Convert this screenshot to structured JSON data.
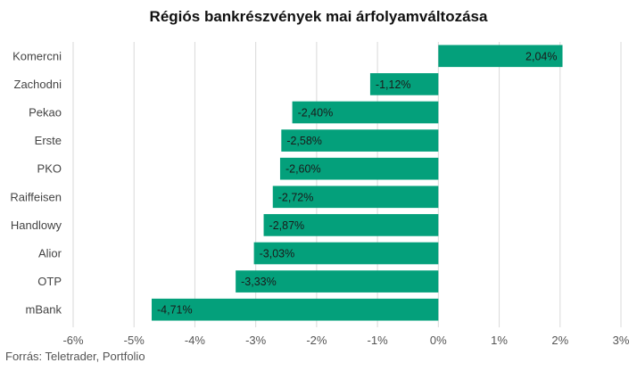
{
  "chart_data": {
    "type": "bar",
    "orientation": "horizontal",
    "title": "Régiós bankrészvények mai árfolyamváltozása",
    "categories": [
      "Komercni",
      "Zachodni",
      "Pekao",
      "Erste",
      "PKO",
      "Raiffeisen",
      "Handlowy",
      "Alior",
      "OTP",
      "mBank"
    ],
    "values": [
      2.04,
      -1.12,
      -2.4,
      -2.58,
      -2.6,
      -2.72,
      -2.87,
      -3.03,
      -3.33,
      -4.71
    ],
    "data_labels": [
      "2,04%",
      "-1,12%",
      "-2,40%",
      "-2,58%",
      "-2,60%",
      "-2,72%",
      "-2,87%",
      "-3,03%",
      "-3,33%",
      "-4,71%"
    ],
    "x_ticks": [
      -6,
      -5,
      -4,
      -3,
      -2,
      -1,
      0,
      1,
      2,
      3
    ],
    "x_tick_labels": [
      "-6%",
      "-5%",
      "-4%",
      "-3%",
      "-2%",
      "-1%",
      "0%",
      "1%",
      "2%",
      "3%"
    ],
    "xlim": [
      -6,
      3
    ],
    "bar_color": "#04A07B",
    "grid": "vertical",
    "source": "Forrás: Teletrader, Portfolio"
  }
}
